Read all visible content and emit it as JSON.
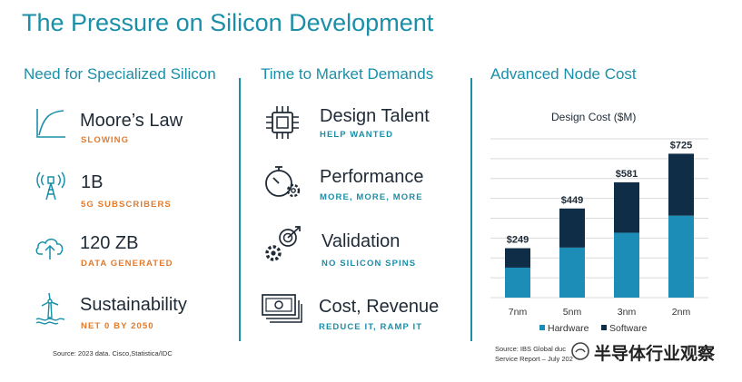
{
  "title": "The Pressure on Silicon Development",
  "columns": [
    {
      "heading": "Need for Specialized Silicon",
      "items": [
        {
          "icon": "curve-icon",
          "title": "Moore’s Law",
          "subtitle": "SLOWING"
        },
        {
          "icon": "antenna-icon",
          "title": "1B",
          "subtitle": "5G SUBSCRIBERS"
        },
        {
          "icon": "cloud-upload-icon",
          "title": "120 ZB",
          "subtitle": "DATA GENERATED"
        },
        {
          "icon": "wind-turbine-icon",
          "title": "Sustainability",
          "subtitle": "NET 0 BY 2050"
        }
      ],
      "source": "Source: 2023 data. Cisco,Statistica/IDC"
    },
    {
      "heading": "Time to Market Demands",
      "items": [
        {
          "icon": "chip-icon",
          "title": "Design Talent",
          "subtitle": "HELP WANTED"
        },
        {
          "icon": "stopwatch-gear-icon",
          "title": "Performance",
          "subtitle": "MORE, MORE, MORE"
        },
        {
          "icon": "gears-target-icon",
          "title": "Validation",
          "subtitle": "NO SILICON SPINS"
        },
        {
          "icon": "money-icon",
          "title": "Cost, Revenue",
          "subtitle": "REDUCE IT, RAMP IT"
        }
      ]
    },
    {
      "heading": "Advanced Node Cost",
      "source_line1": "Source: IBS Global",
      "source_partial": "duc",
      "source_line2": "Service Report – July 20",
      "source_partial2": "2"
    }
  ],
  "watermark": "半导体行业观察",
  "colors": {
    "accent": "#1a8fa8",
    "orange": "#e07b2e",
    "hardware": "#1b8db7",
    "software": "#0f2d47"
  },
  "chart_data": {
    "type": "bar",
    "stacked": true,
    "title": "Design Cost ($M)",
    "categories": [
      "7nm",
      "5nm",
      "3nm",
      "2nm"
    ],
    "series": [
      {
        "name": "Hardware",
        "values": [
          151,
          252,
          327,
          413
        ]
      },
      {
        "name": "Software",
        "values": [
          98,
          197,
          254,
          312
        ]
      }
    ],
    "totals": [
      "$249",
      "$449",
      "$581",
      "$725"
    ],
    "ylim": [
      0,
      800
    ],
    "grid": true,
    "legend": "bottom"
  }
}
